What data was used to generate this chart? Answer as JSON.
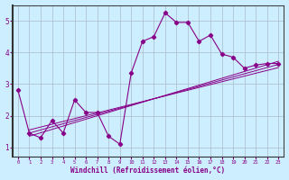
{
  "bg_color": "#cceeff",
  "grid_color": "#aabbcc",
  "line_color": "#880088",
  "spine_color": "#444444",
  "xlabel": "Windchill (Refroidissement éolien,°C)",
  "xlabel_fontsize": 5.5,
  "xlim": [
    -0.5,
    23.5
  ],
  "ylim": [
    0.7,
    5.5
  ],
  "xticks": [
    0,
    1,
    2,
    3,
    4,
    5,
    6,
    7,
    8,
    9,
    10,
    11,
    12,
    13,
    14,
    15,
    16,
    17,
    18,
    19,
    20,
    21,
    22,
    23
  ],
  "yticks": [
    1,
    2,
    3,
    4,
    5
  ],
  "main_x": [
    0,
    1,
    2,
    3,
    4,
    5,
    6,
    7,
    8,
    9,
    10,
    11,
    12,
    13,
    14,
    15,
    16,
    17,
    18,
    19,
    20,
    21,
    22,
    23
  ],
  "main_y": [
    2.8,
    1.45,
    1.3,
    1.85,
    1.45,
    2.5,
    2.1,
    2.1,
    1.35,
    1.1,
    3.35,
    4.35,
    4.5,
    5.25,
    4.95,
    4.95,
    4.35,
    4.55,
    3.95,
    3.85,
    3.5,
    3.6,
    3.65,
    3.65
  ],
  "trend_lines": [
    {
      "x": [
        1,
        23
      ],
      "y": [
        1.35,
        3.72
      ]
    },
    {
      "x": [
        1,
        23
      ],
      "y": [
        1.45,
        3.62
      ]
    },
    {
      "x": [
        1,
        23
      ],
      "y": [
        1.55,
        3.52
      ]
    }
  ]
}
